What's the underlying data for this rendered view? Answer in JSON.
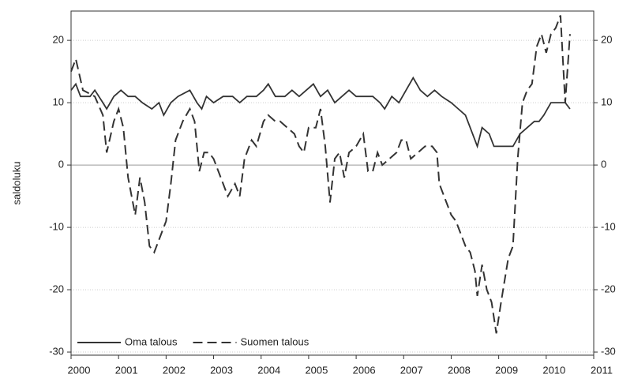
{
  "chart_data": {
    "type": "line",
    "y_label": "saldoluku",
    "xlim": [
      2000,
      2011
    ],
    "xticks": [
      2000,
      2001,
      2002,
      2003,
      2004,
      2005,
      2006,
      2007,
      2008,
      2009,
      2010,
      2011
    ],
    "ylim": [
      -30.5,
      24.7
    ],
    "yticks": [
      -30,
      -20,
      -10,
      0,
      10,
      20
    ],
    "y2lim": [
      -30.5,
      24.7
    ],
    "y2ticks": [
      -30,
      -20,
      -10,
      0,
      10,
      20
    ],
    "grid": true,
    "legend": "lower left",
    "series": [
      {
        "name": "Oma talous",
        "color": "#333333",
        "dash": "solid",
        "x": [
          2000.0,
          2000.1,
          2000.2,
          2000.4,
          2000.5,
          2000.67,
          2000.75,
          2000.9,
          2001.05,
          2001.2,
          2001.35,
          2001.5,
          2001.7,
          2001.85,
          2001.95,
          2002.1,
          2002.25,
          2002.5,
          2002.65,
          2002.75,
          2002.85,
          2003.0,
          2003.2,
          2003.4,
          2003.55,
          2003.7,
          2003.9,
          2004.05,
          2004.15,
          2004.3,
          2004.5,
          2004.65,
          2004.8,
          2004.95,
          2005.1,
          2005.25,
          2005.4,
          2005.55,
          2005.7,
          2005.85,
          2006.0,
          2006.2,
          2006.35,
          2006.5,
          2006.6,
          2006.75,
          2006.9,
          2007.05,
          2007.2,
          2007.35,
          2007.5,
          2007.65,
          2007.8,
          2008.0,
          2008.15,
          2008.3,
          2008.45,
          2008.55,
          2008.65,
          2008.8,
          2008.9,
          2009.1,
          2009.3,
          2009.45,
          2009.6,
          2009.75,
          2009.85,
          2009.95,
          2010.1,
          2010.25,
          2010.4,
          2010.5
        ],
        "values": [
          12,
          13,
          11,
          11,
          12,
          10,
          9,
          11,
          12,
          11,
          11,
          10,
          9,
          10,
          8,
          10,
          11,
          12,
          10,
          9,
          11,
          10,
          11,
          11,
          10,
          11,
          11,
          12,
          13,
          11,
          11,
          12,
          11,
          12,
          13,
          11,
          12,
          10,
          11,
          12,
          11,
          11,
          11,
          10,
          9,
          11,
          10,
          12,
          14,
          12,
          11,
          12,
          11,
          10,
          9,
          8,
          5,
          3,
          6,
          5,
          3,
          3,
          3,
          5,
          6,
          7,
          7,
          8,
          10,
          10,
          10,
          9
        ]
      },
      {
        "name": "Suomen talous",
        "color": "#333333",
        "dash": "dashed",
        "x": [
          2000.0,
          2000.1,
          2000.25,
          2000.5,
          2000.67,
          2000.75,
          2000.9,
          2001.0,
          2001.1,
          2001.2,
          2001.35,
          2001.45,
          2001.55,
          2001.65,
          2001.75,
          2001.9,
          2002.0,
          2002.1,
          2002.2,
          2002.35,
          2002.5,
          2002.6,
          2002.7,
          2002.8,
          2002.9,
          2003.0,
          2003.2,
          2003.3,
          2003.45,
          2003.55,
          2003.65,
          2003.8,
          2003.9,
          2004.05,
          2004.15,
          2004.3,
          2004.4,
          2004.55,
          2004.7,
          2004.8,
          2004.9,
          2005.0,
          2005.15,
          2005.25,
          2005.35,
          2005.45,
          2005.55,
          2005.65,
          2005.75,
          2005.85,
          2006.0,
          2006.15,
          2006.25,
          2006.35,
          2006.45,
          2006.55,
          2006.7,
          2006.85,
          2006.95,
          2007.05,
          2007.15,
          2007.3,
          2007.45,
          2007.6,
          2007.7,
          2007.75,
          2007.85,
          2008.0,
          2008.1,
          2008.2,
          2008.3,
          2008.4,
          2008.5,
          2008.55,
          2008.65,
          2008.75,
          2008.85,
          2008.95,
          2009.05,
          2009.2,
          2009.3,
          2009.4,
          2009.5,
          2009.6,
          2009.7,
          2009.8,
          2009.9,
          2010.0,
          2010.1,
          2010.2,
          2010.3,
          2010.4,
          2010.5
        ],
        "values": [
          15,
          17,
          12,
          11,
          8,
          2,
          7,
          9,
          6,
          -2,
          -8,
          -2,
          -6,
          -13,
          -14,
          -11,
          -9,
          -3,
          4,
          7,
          9,
          7,
          -1,
          2,
          2,
          1,
          -3,
          -5,
          -3,
          -5,
          1,
          4,
          3,
          7,
          8,
          7,
          7,
          6,
          5,
          3,
          2,
          6,
          6,
          9,
          3,
          -6,
          1,
          2,
          -2,
          2,
          3,
          5,
          -1,
          -1,
          2,
          0,
          1,
          2,
          4,
          4,
          1,
          2,
          3,
          3,
          2,
          -3,
          -5,
          -8,
          -9,
          -11,
          -13,
          -14,
          -17,
          -21,
          -16,
          -20,
          -22,
          -27,
          -22,
          -15,
          -13,
          1,
          10,
          12,
          13,
          19,
          21,
          18,
          21,
          22,
          24,
          10,
          21
        ]
      }
    ]
  }
}
